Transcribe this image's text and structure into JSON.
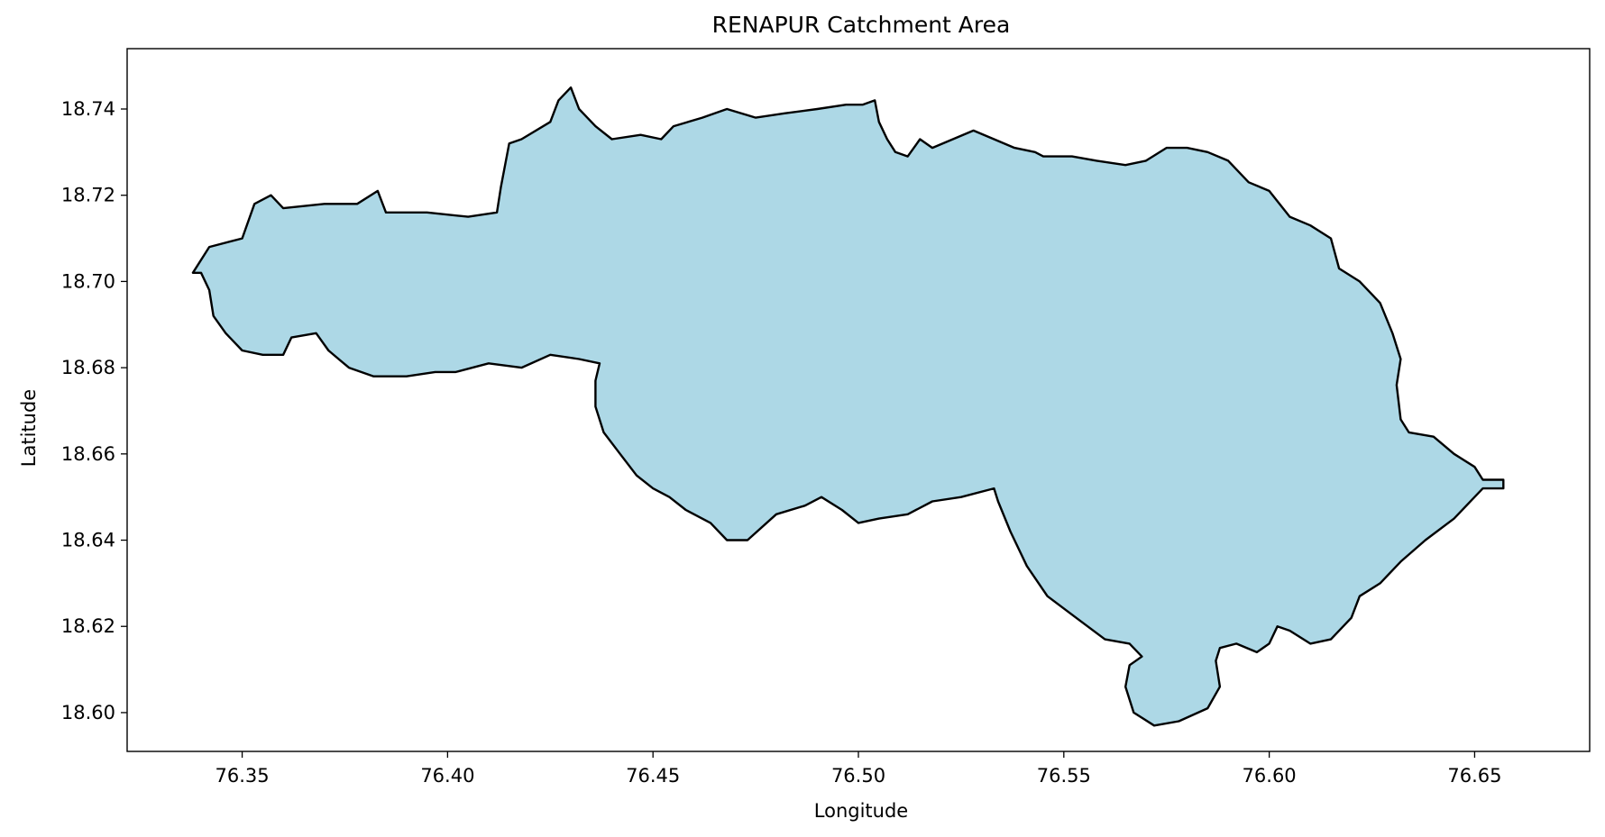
{
  "chart_data": {
    "type": "map",
    "title": "RENAPUR Catchment Area",
    "xlabel": "Longitude",
    "ylabel": "Latitude",
    "xlim": [
      76.322,
      76.678
    ],
    "ylim": [
      18.591,
      18.754
    ],
    "x_ticks": [
      76.35,
      76.4,
      76.45,
      76.5,
      76.55,
      76.6,
      76.65
    ],
    "x_tick_labels": [
      "76.35",
      "76.40",
      "76.45",
      "76.50",
      "76.55",
      "76.60",
      "76.65"
    ],
    "y_ticks": [
      18.6,
      18.62,
      18.64,
      18.66,
      18.68,
      18.7,
      18.72,
      18.74
    ],
    "y_tick_labels": [
      "18.60",
      "18.62",
      "18.64",
      "18.66",
      "18.68",
      "18.70",
      "18.72",
      "18.74"
    ],
    "grid": false,
    "fill_color": "#add8e6",
    "edge_color": "#000000",
    "boundary": [
      [
        76.338,
        18.702
      ],
      [
        76.342,
        18.708
      ],
      [
        76.35,
        18.71
      ],
      [
        76.353,
        18.718
      ],
      [
        76.357,
        18.72
      ],
      [
        76.36,
        18.717
      ],
      [
        76.37,
        18.718
      ],
      [
        76.378,
        18.718
      ],
      [
        76.383,
        18.721
      ],
      [
        76.385,
        18.716
      ],
      [
        76.395,
        18.716
      ],
      [
        76.405,
        18.715
      ],
      [
        76.412,
        18.716
      ],
      [
        76.413,
        18.722
      ],
      [
        76.415,
        18.732
      ],
      [
        76.418,
        18.733
      ],
      [
        76.425,
        18.737
      ],
      [
        76.427,
        18.742
      ],
      [
        76.43,
        18.745
      ],
      [
        76.432,
        18.74
      ],
      [
        76.436,
        18.736
      ],
      [
        76.44,
        18.733
      ],
      [
        76.447,
        18.734
      ],
      [
        76.452,
        18.733
      ],
      [
        76.455,
        18.736
      ],
      [
        76.462,
        18.738
      ],
      [
        76.468,
        18.74
      ],
      [
        76.475,
        18.738
      ],
      [
        76.482,
        18.739
      ],
      [
        76.49,
        18.74
      ],
      [
        76.497,
        18.741
      ],
      [
        76.501,
        18.741
      ],
      [
        76.504,
        18.742
      ],
      [
        76.505,
        18.737
      ],
      [
        76.507,
        18.733
      ],
      [
        76.509,
        18.73
      ],
      [
        76.512,
        18.729
      ],
      [
        76.515,
        18.733
      ],
      [
        76.518,
        18.731
      ],
      [
        76.523,
        18.733
      ],
      [
        76.528,
        18.735
      ],
      [
        76.533,
        18.733
      ],
      [
        76.538,
        18.731
      ],
      [
        76.543,
        18.73
      ],
      [
        76.545,
        18.729
      ],
      [
        76.552,
        18.729
      ],
      [
        76.558,
        18.728
      ],
      [
        76.565,
        18.727
      ],
      [
        76.57,
        18.728
      ],
      [
        76.575,
        18.731
      ],
      [
        76.58,
        18.731
      ],
      [
        76.585,
        18.73
      ],
      [
        76.59,
        18.728
      ],
      [
        76.595,
        18.723
      ],
      [
        76.6,
        18.721
      ],
      [
        76.605,
        18.715
      ],
      [
        76.61,
        18.713
      ],
      [
        76.615,
        18.71
      ],
      [
        76.617,
        18.703
      ],
      [
        76.622,
        18.7
      ],
      [
        76.627,
        18.695
      ],
      [
        76.63,
        18.688
      ],
      [
        76.632,
        18.682
      ],
      [
        76.631,
        18.676
      ],
      [
        76.632,
        18.668
      ],
      [
        76.634,
        18.665
      ],
      [
        76.64,
        18.664
      ],
      [
        76.645,
        18.66
      ],
      [
        76.65,
        18.657
      ],
      [
        76.652,
        18.654
      ],
      [
        76.657,
        18.654
      ],
      [
        76.657,
        18.652
      ],
      [
        76.652,
        18.652
      ],
      [
        76.645,
        18.645
      ],
      [
        76.638,
        18.64
      ],
      [
        76.632,
        18.635
      ],
      [
        76.627,
        18.63
      ],
      [
        76.622,
        18.627
      ],
      [
        76.62,
        18.622
      ],
      [
        76.615,
        18.617
      ],
      [
        76.61,
        18.616
      ],
      [
        76.605,
        18.619
      ],
      [
        76.602,
        18.62
      ],
      [
        76.6,
        18.616
      ],
      [
        76.597,
        18.614
      ],
      [
        76.592,
        18.616
      ],
      [
        76.588,
        18.615
      ],
      [
        76.587,
        18.612
      ],
      [
        76.588,
        18.606
      ],
      [
        76.585,
        18.601
      ],
      [
        76.578,
        18.598
      ],
      [
        76.572,
        18.597
      ],
      [
        76.567,
        18.6
      ],
      [
        76.565,
        18.606
      ],
      [
        76.566,
        18.611
      ],
      [
        76.569,
        18.613
      ],
      [
        76.566,
        18.616
      ],
      [
        76.56,
        18.617
      ],
      [
        76.553,
        18.622
      ],
      [
        76.546,
        18.627
      ],
      [
        76.541,
        18.634
      ],
      [
        76.537,
        18.642
      ],
      [
        76.534,
        18.649
      ],
      [
        76.533,
        18.652
      ],
      [
        76.525,
        18.65
      ],
      [
        76.518,
        18.649
      ],
      [
        76.512,
        18.646
      ],
      [
        76.505,
        18.645
      ],
      [
        76.5,
        18.644
      ],
      [
        76.496,
        18.647
      ],
      [
        76.491,
        18.65
      ],
      [
        76.487,
        18.648
      ],
      [
        76.48,
        18.646
      ],
      [
        76.473,
        18.64
      ],
      [
        76.468,
        18.64
      ],
      [
        76.464,
        18.644
      ],
      [
        76.458,
        18.647
      ],
      [
        76.454,
        18.65
      ],
      [
        76.45,
        18.652
      ],
      [
        76.446,
        18.655
      ],
      [
        76.442,
        18.66
      ],
      [
        76.438,
        18.665
      ],
      [
        76.436,
        18.671
      ],
      [
        76.436,
        18.677
      ],
      [
        76.437,
        18.681
      ],
      [
        76.432,
        18.682
      ],
      [
        76.425,
        18.683
      ],
      [
        76.418,
        18.68
      ],
      [
        76.41,
        18.681
      ],
      [
        76.402,
        18.679
      ],
      [
        76.397,
        18.679
      ],
      [
        76.39,
        18.678
      ],
      [
        76.382,
        18.678
      ],
      [
        76.376,
        18.68
      ],
      [
        76.371,
        18.684
      ],
      [
        76.368,
        18.688
      ],
      [
        76.362,
        18.687
      ],
      [
        76.36,
        18.683
      ],
      [
        76.355,
        18.683
      ],
      [
        76.35,
        18.684
      ],
      [
        76.346,
        18.688
      ],
      [
        76.343,
        18.692
      ],
      [
        76.342,
        18.698
      ],
      [
        76.34,
        18.702
      ]
    ]
  }
}
